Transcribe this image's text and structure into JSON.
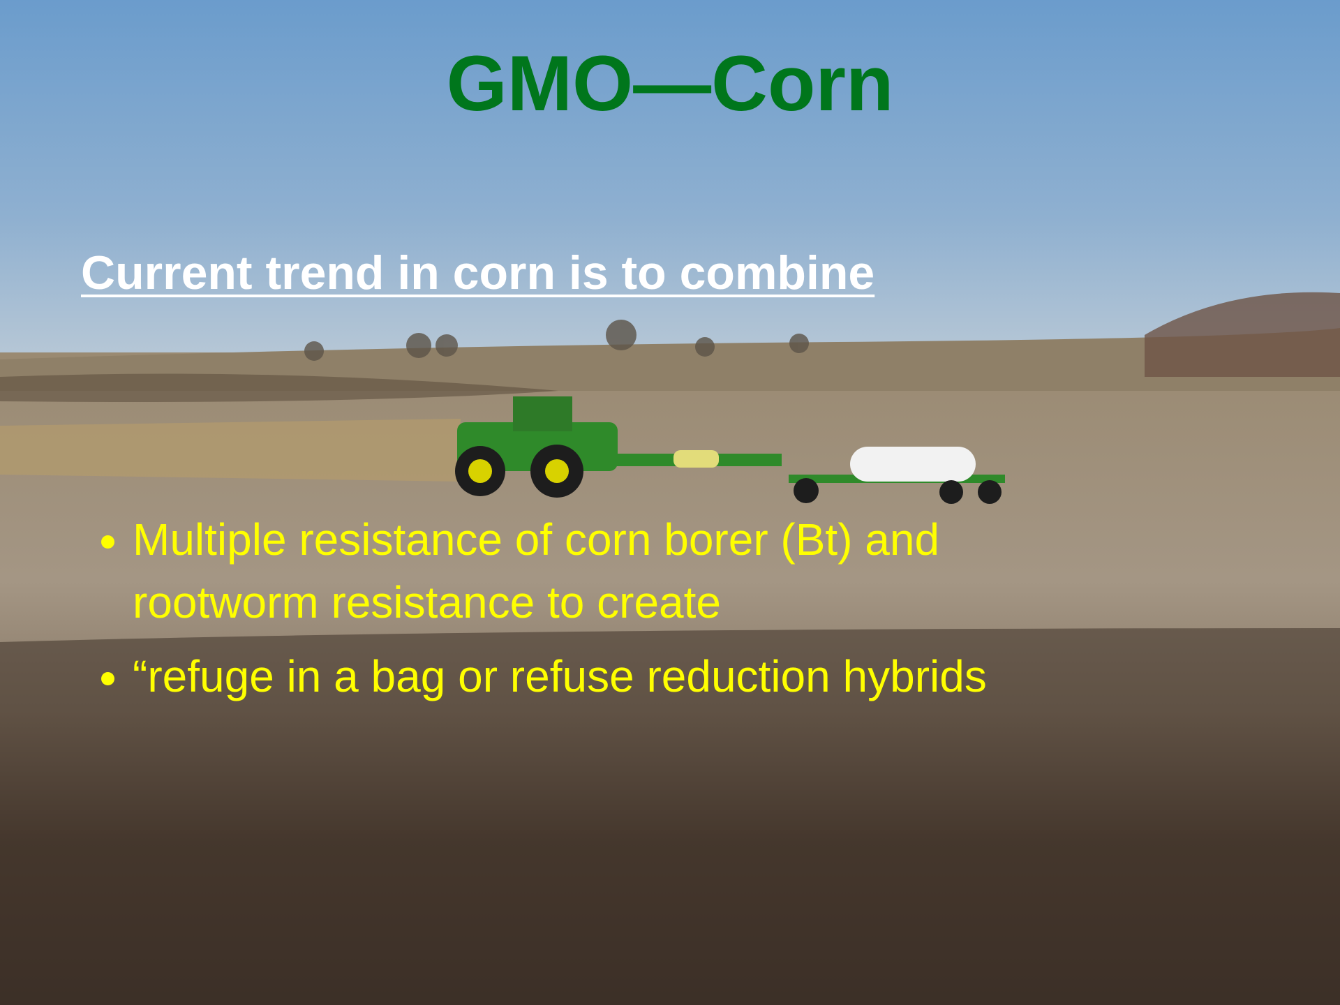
{
  "title": "GMO—Corn",
  "subtitle": "Current trend in corn is to combine",
  "bullets": [
    "Multiple resistance of corn borer (Bt) and rootworm resistance to create",
    "“refuge in a bag or refuse reduction hybrids"
  ]
}
